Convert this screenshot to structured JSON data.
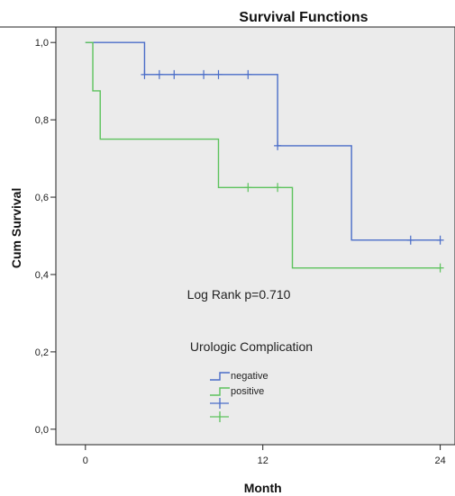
{
  "chart_data": {
    "type": "line",
    "title": "Survival Functions",
    "xlabel": "Month",
    "ylabel": "Cum Survival",
    "xlim": [
      -2,
      25
    ],
    "ylim": [
      -0.04,
      1.04
    ],
    "x_ticks": [
      0,
      12,
      24
    ],
    "y_ticks": [
      0.0,
      0.2,
      0.4,
      0.6,
      0.8,
      1.0
    ],
    "y_tick_labels": [
      "0,0",
      "0,2",
      "0,4",
      "0,6",
      "0,8",
      "1,0"
    ],
    "grid": false,
    "annotation": "Log Rank p=0.710",
    "legend": {
      "title": "Urologic Complication",
      "placement": "bottom-center",
      "entries": [
        "negative",
        "positive"
      ]
    },
    "colors": {
      "negative": "#4a6dc8",
      "positive": "#5cc25c",
      "plot_bg": "#ebebeb"
    },
    "series": [
      {
        "name": "negative",
        "steps": [
          [
            0,
            1.0
          ],
          [
            4,
            0.917
          ],
          [
            13,
            0.733
          ],
          [
            18,
            0.489
          ],
          [
            24,
            0.489
          ]
        ],
        "censored": [
          [
            4,
            0.917
          ],
          [
            5,
            0.917
          ],
          [
            6,
            0.917
          ],
          [
            8,
            0.917
          ],
          [
            9,
            0.917
          ],
          [
            11,
            0.917
          ],
          [
            13,
            0.733
          ],
          [
            22,
            0.489
          ],
          [
            24,
            0.489
          ]
        ]
      },
      {
        "name": "positive",
        "steps": [
          [
            0,
            1.0
          ],
          [
            0.5,
            0.875
          ],
          [
            1,
            0.75
          ],
          [
            9,
            0.625
          ],
          [
            14,
            0.417
          ],
          [
            24,
            0.417
          ]
        ],
        "censored": [
          [
            11,
            0.625
          ],
          [
            13,
            0.625
          ],
          [
            24,
            0.417
          ]
        ]
      }
    ]
  }
}
